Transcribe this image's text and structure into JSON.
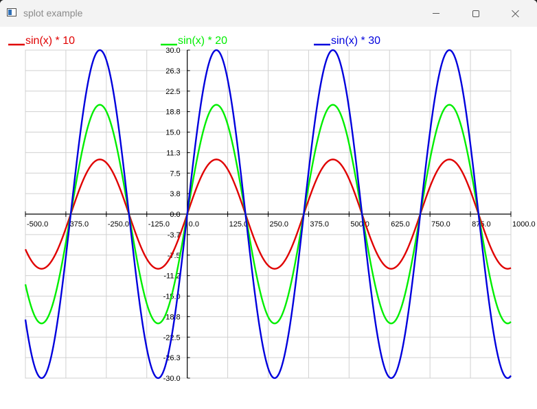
{
  "window": {
    "title": "splot example"
  },
  "chart_data": {
    "type": "line",
    "title": "",
    "xlabel": "",
    "ylabel": "",
    "xlim": [
      -500,
      1000
    ],
    "ylim": [
      -30,
      30
    ],
    "grid": true,
    "legend_placement": "top",
    "x_ticks": [
      "-500.0",
      "-375.0",
      "-250.0",
      "-125.0",
      "0.0",
      "125.0",
      "250.0",
      "375.0",
      "500.0",
      "625.0",
      "750.0",
      "875.0",
      "1000.0"
    ],
    "y_ticks": [
      "30.0",
      "26.3",
      "22.5",
      "18.8",
      "15.0",
      "11.3",
      "7.5",
      "3.8",
      "0.0",
      "-3.7",
      "-7.5",
      "-11.2",
      "-15.0",
      "-18.8",
      "-22.5",
      "-26.3",
      "-30.0"
    ],
    "x_unit": "degrees",
    "series": [
      {
        "name": "sin(x) * 10",
        "amplitude": 10,
        "color": "#e00000"
      },
      {
        "name": "sin(x) * 20",
        "amplitude": 20,
        "color": "#00ee00"
      },
      {
        "name": "sin(x) * 30",
        "amplitude": 30,
        "color": "#0000dd"
      }
    ]
  }
}
